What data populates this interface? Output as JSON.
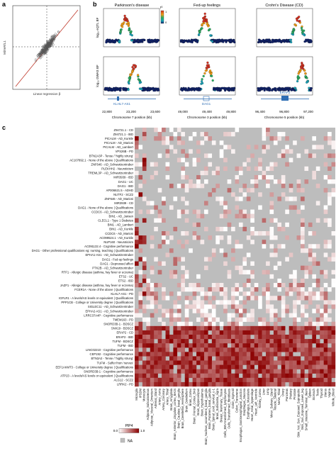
{
  "panel_labels": {
    "a": "a",
    "b": "b",
    "c": "c"
  },
  "panel_a": {
    "ylabel": "MiXeR/L1",
    "xlabel": "Linear regression β"
  },
  "panel_b": {
    "columns": [
      {
        "title": "Parkinson's disease",
        "gene": "KLHL7-AS1",
        "xlabel": "Chromosome 7 position (kb)",
        "ticks": [
          "22,800",
          "23,200",
          "23,600"
        ]
      },
      {
        "title": "Fed-up feelings",
        "gene": "DAG1",
        "xlabel": "Chromosome 3 position (kb)",
        "ticks": [
          "49,000",
          "49,400",
          "49,800"
        ]
      },
      {
        "title": "Crohn's Disease (CD)",
        "gene": "ERAP2",
        "xlabel": "Chromosome 5 position (kb)",
        "ticks": [
          "96,400",
          "96,800",
          "97,200"
        ]
      }
    ],
    "row_ylabels": [
      "log₁₀ eQTL BF",
      "log₁₀ GWAS BF"
    ],
    "legend_r2_label": "r²",
    "legend_r2_ticks": [
      "1",
      "0"
    ]
  },
  "panel_c": {
    "row_labels": [
      "Z94721.1 - CD",
      "Z94721.1 - IBD",
      "PICALM - AD_Kunkle",
      "PICALM - AD_Marioni",
      "PICALM - AD_Lambert",
      "VPS26B - PD",
      "BTN2A3P - Tense / 'highly strung'",
      "AC107892.1 - None of the above | Qualifications",
      "ZNF646 - AD_Schwartzentruber",
      "PLEKHH2 - Neuroticism",
      "TREML3P - AD_Schwartzentruber",
      "MIR3939 - IBD",
      "DAG1 - UC",
      "DAG1 - IBD",
      "AP006621.5 - ADHD",
      "NUTF2 - SCZ2",
      "ZNF646 - AD_Marioni",
      "MIR3939 - CD",
      "DAG1 - None of the above | Qualifications",
      "CCDC6 - AD_Schwartzentruber",
      "BIN1 - AD_Jansen",
      "CLECL1 - Type 1 Diabetes",
      "BIN1 - AD_Lambert",
      "BIN1 - AD_Kunkle",
      "CCDC6 - AD_Marioni",
      "AC099524.1 - AD_Kunkle",
      "NUP160 - Neuroticism",
      "AC091132.4 - Cognitive performance",
      "DAG1 - Other professional qualifications eg: nursing, teaching | Qualifications",
      "EPHA1-AS1 - AD_Schwartzentruber",
      "DAG1 - Fed-up feelings",
      "DAG1 - Depressed affect",
      "PTK2B - AD_Schwartzentruber",
      "RTF1 - Allergic disease (asthma, hay fever or eczema)",
      "ETS2 - UC",
      "ETS2 - IBD",
      "JAZF1 - Allergic disease (asthma, hay fever or eczema)",
      "FCER1A - None of the above | Qualifications",
      "KLHL7-AS1 - PD",
      "IGFLR1 - A levels/AS levels or equivalent | Qualifications",
      "PPP1CB - College or University degree | Qualifications",
      "SIGLEC11 - AD_Schwartzentruber",
      "EPHA2-AS1 - AD_Schwartzentruber",
      "LRRC37A4P - Cognitive performance",
      "TMEM163 - PD",
      "SNORD3B-1 - BDSCZ",
      "SNX19 - BDSCZ",
      "ERAP2 - CD",
      "ERAP2 - IBD",
      "TUFM - BDSCZ",
      "TUFM - IBD",
      "LINC02210 - Cognitive performance",
      "CEP192 - Cognitive performance",
      "BTN3A2 - Tense / 'highly strung'",
      "TUFM - Suffer from 'nerves'",
      "EEF1AKMT3 - College or University degree | Qualifications",
      "SNORD3B-1 - Cognitive performance",
      "ATP23 - A levels/AS levels or equivalent | Qualifications",
      "ALG12 - SCZ2",
      "LRRK2 - PD"
    ],
    "col_labels": [
      "Microglia",
      "iPSDM",
      "Monocyte",
      "Adipose_Subcutaneous",
      "Adipose_Visceral_Omentum",
      "Adrenal_Gland",
      "Artery_Aorta",
      "Artery_Coronary",
      "Artery_Tibial",
      "Brain_Amygdala",
      "Brain_Anterior_cingulate_cortex_BA24",
      "Brain_Caudate_basal_ganglia",
      "Brain_Cerebellar_Hemisphere",
      "Brain_Cerebellum",
      "Brain_Cortex",
      "Brain_Frontal_Cortex_BA9",
      "Brain_Hippocampus",
      "Brain_Hypothalamus",
      "Brain_Nucleus_accumbens_basal_ganglia",
      "Brain_Putamen_basal_ganglia",
      "Brain_Spinal_cord_cervical_c-1",
      "Brain_Substantia_nigra",
      "Breast_Mammary_Tissue",
      "Cells_EBV-transformed_lymphocytes",
      "Cells_Transformed_fibroblasts",
      "Colon_Sigmoid",
      "Colon_Transverse",
      "Esophagus_Gastroesophageal_Junction",
      "Esophagus_Mucosa",
      "Esophagus_Muscularis",
      "Heart_Atrial_Appendage",
      "Heart_Left_Ventricle",
      "Kidney_Cortex",
      "Liver",
      "Lung",
      "Minor_Salivary_Gland",
      "Muscle_Skeletal",
      "Nerve_Tibial",
      "Ovary",
      "Pancreas",
      "Pituitary",
      "Prostate",
      "Skin_Not_Sun_Exposed_Suprapubic",
      "Skin_Sun_Exposed_Lower_leg",
      "Small_Intestine_Terminal_Ileum",
      "Spleen",
      "Stomach",
      "Testis",
      "Thyroid",
      "Uterus",
      "Vagina",
      "Whole_Blood"
    ],
    "legend_title": "PIP4",
    "legend_ticks": [
      "0.0",
      "1.0"
    ],
    "na_label": "NA"
  }
}
